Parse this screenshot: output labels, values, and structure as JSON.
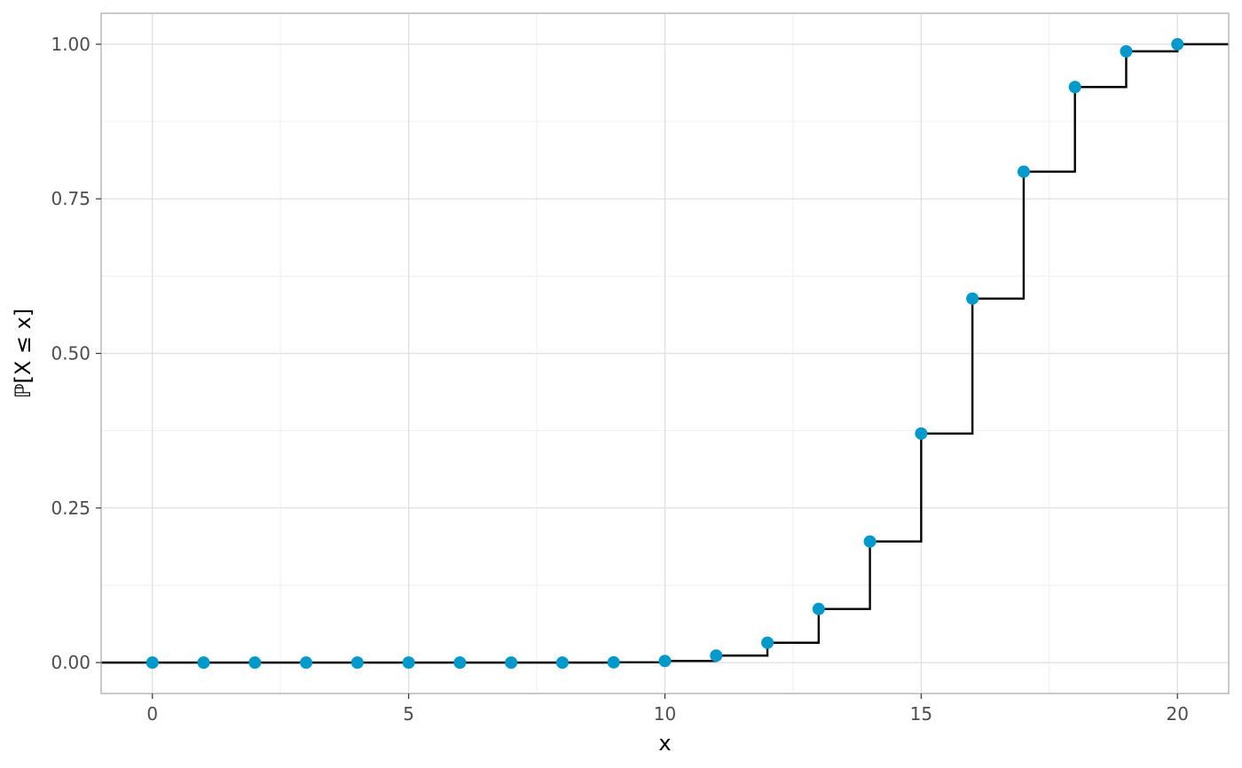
{
  "chart_data": {
    "type": "line",
    "subtype": "step-cdf",
    "title": "",
    "xlabel": "x",
    "ylabel": "ℙ[X ≤ x]",
    "xlim": [
      -1,
      21
    ],
    "ylim": [
      -0.05,
      1.05
    ],
    "x_ticks": [
      0,
      5,
      10,
      15,
      20
    ],
    "x_tick_labels": [
      "0",
      "5",
      "10",
      "15",
      "20"
    ],
    "y_ticks": [
      0,
      0.25,
      0.5,
      0.75,
      1.0
    ],
    "y_tick_labels": [
      "0.00",
      "0.25",
      "0.50",
      "0.75",
      "1.00"
    ],
    "grid": true,
    "legend": "none",
    "series": [
      {
        "x": [
          0,
          1,
          2,
          3,
          4,
          5,
          6,
          7,
          8,
          9,
          10,
          11,
          12,
          13,
          14,
          15,
          16,
          17,
          18,
          19,
          20
        ],
        "y": [
          0.0,
          0.0,
          0.0,
          0.0,
          0.0,
          0.0,
          0.0,
          0.0,
          0.0,
          0.0004,
          0.0026,
          0.0113,
          0.0321,
          0.0867,
          0.1958,
          0.3704,
          0.5886,
          0.7939,
          0.9308,
          0.9885,
          1.0
        ]
      }
    ],
    "colors": {
      "points": "#0099cc",
      "step_line": "#000000",
      "grid_major": "#dedede",
      "grid_minor": "#efefef",
      "panel_border": "#b3b3b3",
      "tick_text": "#4d4d4d"
    }
  }
}
